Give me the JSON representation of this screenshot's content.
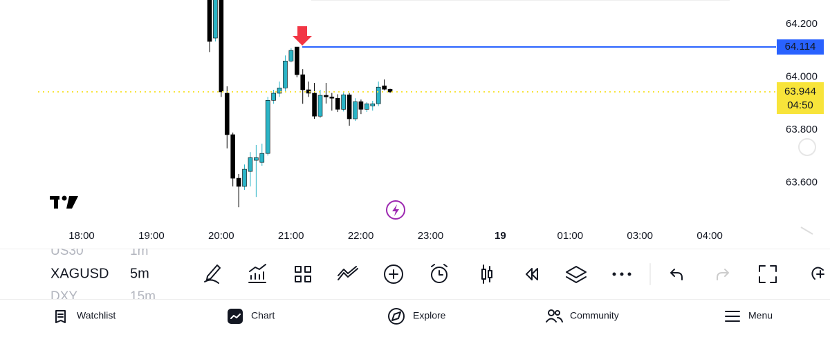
{
  "chart_data": {
    "type": "candlestick",
    "x_labels": [
      "18:00",
      "19:00",
      "20:00",
      "21:00",
      "22:00",
      "23:00",
      "19",
      "01:00",
      "03:00",
      "04:00"
    ],
    "open": [
      64.3,
      64.148,
      64.3,
      63.939,
      63.782,
      63.617,
      63.586,
      63.643,
      63.685,
      63.677,
      63.711,
      63.912,
      63.939,
      63.959,
      64.061,
      64.114,
      64.009,
      63.952,
      63.939,
      63.852,
      63.931,
      63.925,
      63.92,
      63.878,
      63.933,
      63.842,
      63.907,
      63.878,
      63.891,
      63.899,
      63.967,
      63.954
    ],
    "high": [
      64.32,
      64.33,
      64.31,
      63.965,
      63.79,
      63.633,
      63.669,
      63.716,
      63.743,
      63.748,
      63.925,
      63.952,
      63.983,
      64.082,
      64.109,
      64.114,
      64.03,
      63.983,
      63.978,
      63.952,
      63.978,
      63.94,
      63.935,
      63.946,
      63.94,
      63.92,
      63.915,
      63.905,
      63.91,
      63.983,
      63.991,
      63.956
    ],
    "low": [
      64.095,
      64.135,
      63.925,
      63.73,
      63.586,
      63.507,
      63.573,
      63.586,
      63.546,
      63.664,
      63.703,
      63.899,
      63.925,
      63.946,
      64.056,
      63.999,
      63.899,
      63.925,
      63.842,
      63.845,
      63.9,
      63.873,
      63.868,
      63.87,
      63.816,
      63.834,
      63.86,
      63.868,
      63.873,
      63.89,
      63.95,
      63.94
    ],
    "close": [
      64.135,
      64.31,
      63.944,
      63.782,
      63.617,
      63.586,
      63.651,
      63.695,
      63.695,
      63.711,
      63.912,
      63.939,
      63.959,
      64.061,
      64.101,
      64.009,
      63.952,
      63.939,
      63.852,
      63.931,
      63.925,
      63.92,
      63.878,
      63.933,
      63.842,
      63.907,
      63.878,
      63.899,
      63.899,
      63.962,
      63.954,
      63.944
    ],
    "up_color": "#2bb4c6",
    "down_color": "#000000",
    "ylim": [
      63.442,
      64.292
    ],
    "yticks": [
      {
        "value": 63.6,
        "label": "63.600"
      },
      {
        "value": 63.8,
        "label": "63.800"
      },
      {
        "value": 64.0,
        "label": "64.000"
      },
      {
        "value": 64.2,
        "label": "64.200"
      }
    ],
    "price_lines": [
      {
        "value": 64.114,
        "label": "64.114",
        "color": "#2962ff"
      },
      {
        "value": 63.944,
        "label": "63.944",
        "countdown": "04:50",
        "color": "#f8e43a"
      }
    ]
  },
  "symbols": [
    {
      "symbol": "US30",
      "interval": "1m"
    },
    {
      "symbol": "XAGUSD",
      "interval": "5m"
    },
    {
      "symbol": "DXY",
      "interval": "15m"
    }
  ],
  "nav": [
    "Watchlist",
    "Chart",
    "Explore",
    "Community",
    "Menu"
  ]
}
